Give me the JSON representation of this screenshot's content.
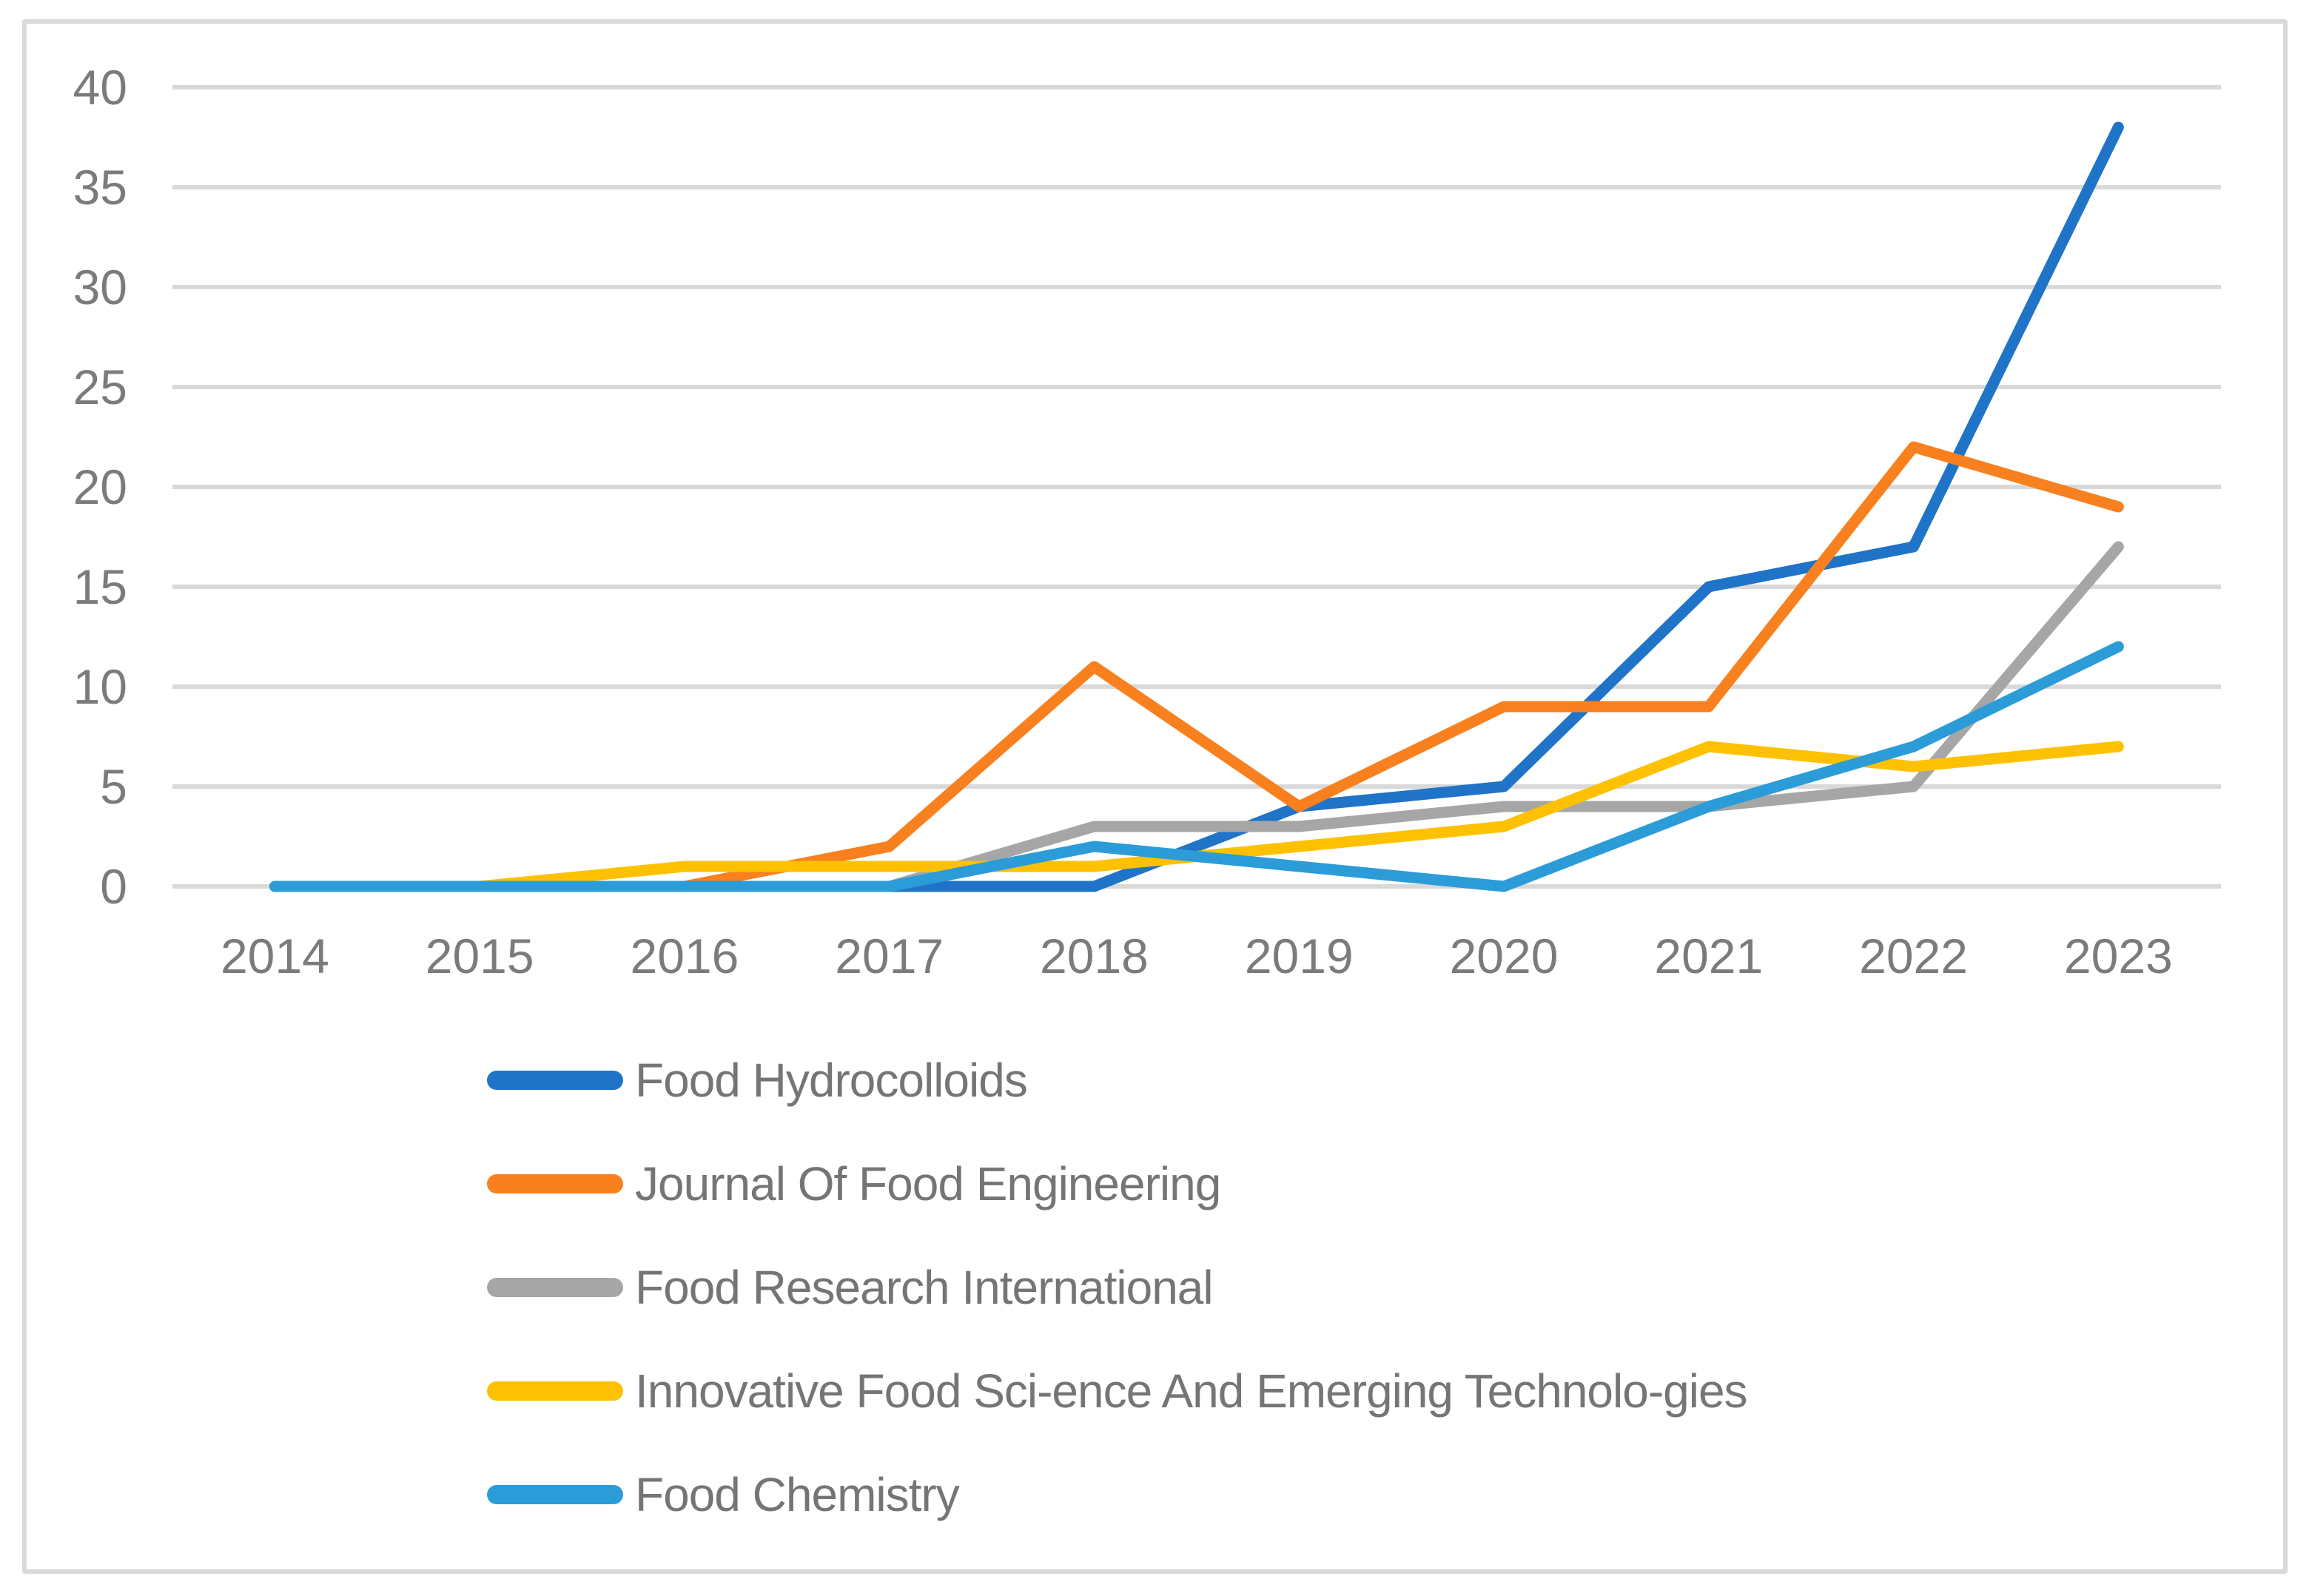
{
  "chart_data": {
    "type": "line",
    "title": "",
    "xlabel": "",
    "ylabel": "",
    "x": [
      "2014",
      "2015",
      "2016",
      "2017",
      "2018",
      "2019",
      "2020",
      "2021",
      "2022",
      "2023"
    ],
    "series": [
      {
        "name": "Food Hydrocolloids",
        "color": "#2074C7",
        "values": [
          0,
          0,
          0,
          0,
          0,
          4,
          5,
          15,
          17,
          38
        ]
      },
      {
        "name": "Journal Of Food Engineering",
        "color": "#F9801E",
        "values": [
          0,
          0,
          0,
          2,
          11,
          4,
          9,
          9,
          22,
          19
        ]
      },
      {
        "name": "Food Research International",
        "color": "#A6A6A6",
        "values": [
          0,
          0,
          0,
          0,
          3,
          3,
          4,
          4,
          5,
          17
        ]
      },
      {
        "name": "Innovative Food Sci-ence And Emerging Technolo-gies",
        "color": "#FEC102",
        "values": [
          0,
          0,
          1,
          1,
          1,
          2,
          3,
          7,
          6,
          7
        ]
      },
      {
        "name": "Food Chemistry",
        "color": "#2B9CD8",
        "values": [
          0,
          0,
          0,
          0,
          2,
          1,
          0,
          4,
          7,
          12
        ]
      }
    ],
    "ylim": [
      0,
      40
    ],
    "yticks": [
      0,
      5,
      10,
      15,
      20,
      25,
      30,
      35,
      40
    ],
    "grid": "horizontal",
    "legend_position": "bottom-left",
    "gridline_color": "#D9D9D9",
    "panel_border_color": "#D9D9D9",
    "axis_label_color": "#7B7B7B",
    "legend_text_color": "#757575"
  }
}
